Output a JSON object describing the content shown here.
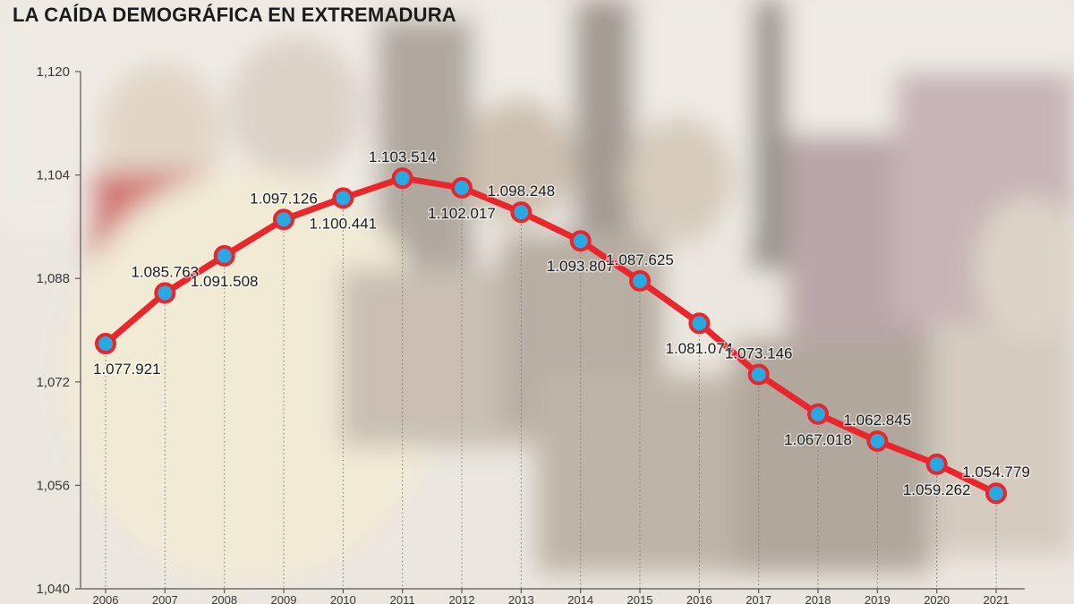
{
  "title": "LA CAÍDA DEMOGRÁFICA EN EXTREMADURA",
  "colors": {
    "line": "#e8262c",
    "marker_fill": "#29a9e1",
    "marker_stroke": "#e8262c",
    "axis": "#555555",
    "dotted": "#7a7a7a"
  },
  "chart_data": {
    "type": "line",
    "title": "LA CAÍDA DEMOGRÁFICA EN EXTREMADURA",
    "xlabel": "",
    "ylabel": "",
    "categories": [
      "2006",
      "2007",
      "2008",
      "2009",
      "2010",
      "2011",
      "2012",
      "2013",
      "2014",
      "2015",
      "2016",
      "2017",
      "2018",
      "2019",
      "2020",
      "2021"
    ],
    "values": [
      1077921,
      1085763,
      1091508,
      1097126,
      1100441,
      1103514,
      1102017,
      1098248,
      1093807,
      1087625,
      1081074,
      1073146,
      1067018,
      1062845,
      1059262,
      1054779
    ],
    "data_labels": [
      "1.077.921",
      "1.085.763",
      "1.091.508",
      "1.097.126",
      "1.100.441",
      "1.103.514",
      "1.102.017",
      "1.098.248",
      "1.093.807",
      "1.087.625",
      "1.081.074",
      "1.073.146",
      "1.067.018",
      "1.062.845",
      "1.059.262",
      "1.054.779"
    ],
    "label_positions": [
      "below",
      "above",
      "below",
      "above",
      "below",
      "above",
      "below",
      "above",
      "below",
      "above",
      "below",
      "above",
      "below",
      "above",
      "below",
      "above"
    ],
    "yticks": [
      1040000,
      1056000,
      1072000,
      1088000,
      1104000,
      1120000
    ],
    "ytick_labels": [
      "1,040",
      "1,056",
      "1,072",
      "1,088",
      "1,104",
      "1,120"
    ],
    "ylim": [
      1040000,
      1120000
    ],
    "grid": false,
    "legend": "none",
    "marker": "circle"
  }
}
